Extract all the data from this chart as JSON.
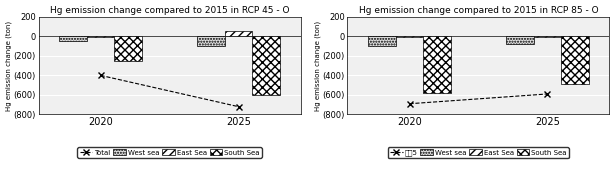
{
  "chart1": {
    "title": "Hg emission change compared to 2015 in RCP 45 - O",
    "ylabel": "Hg emission change (ton)",
    "ylim": [
      -800,
      200
    ],
    "yticks": [
      200,
      0,
      -200,
      -400,
      -600,
      -800
    ],
    "ytick_labels": [
      "200",
      "0",
      "(200)",
      "(400)",
      "(600)",
      "(800)"
    ],
    "xtick_labels": [
      "2020",
      "2025"
    ],
    "west_sea": [
      -50,
      -100
    ],
    "east_sea": [
      -5,
      50
    ],
    "south_sea": [
      -250,
      -600
    ],
    "total": [
      -400,
      -720
    ]
  },
  "chart2": {
    "title": "Hg emission change compared to 2015 in RCP 85 - O",
    "ylabel": "Hg emission change (ton)",
    "ylim": [
      -800,
      200
    ],
    "yticks": [
      200,
      0,
      -200,
      -400,
      -600,
      -800
    ],
    "ytick_labels": [
      "200",
      "0",
      "(200)",
      "(400)",
      "(600)",
      "(800)"
    ],
    "xtick_labels": [
      "2020",
      "2025"
    ],
    "west_sea": [
      -100,
      -80
    ],
    "east_sea": [
      -5,
      -5
    ],
    "south_sea": [
      -580,
      -490
    ],
    "total": [
      -690,
      -590
    ]
  },
  "legend1": [
    "West sea",
    "East Sea",
    "South Sea",
    "Total"
  ],
  "legend2": [
    "West sea",
    "East Sea",
    "South Sea",
    "계열5"
  ],
  "bar_width": 0.2,
  "west_sea_color": "#e0e0e0",
  "east_sea_hatch": "////",
  "south_sea_hatch": "xxxx",
  "line_color": "#000000",
  "line_style": "--",
  "marker": "x",
  "bg_color": "#f0f0f0"
}
